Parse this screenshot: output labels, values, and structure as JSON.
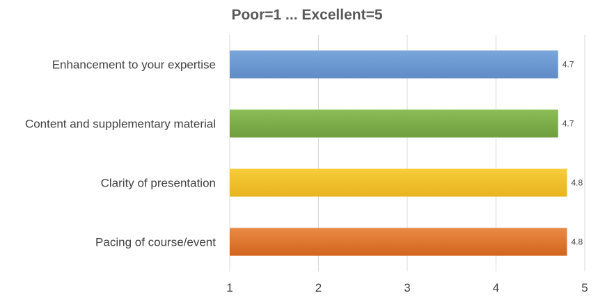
{
  "chart_data": {
    "type": "bar",
    "orientation": "horizontal",
    "title": "Poor=1 ... Excellent=5",
    "xlabel": "",
    "ylabel": "",
    "categories": [
      "Enhancement to your expertise",
      "Content and supplementary material",
      "Clarity of presentation",
      "Pacing of course/event"
    ],
    "values": [
      4.7,
      4.7,
      4.8,
      4.8
    ],
    "data_labels": [
      "4.7",
      "4.7",
      "4.8",
      "4.8"
    ],
    "xlim": [
      1,
      5
    ],
    "xticks": [
      "1",
      "2",
      "3",
      "4",
      "5"
    ],
    "grid": "vertical",
    "legend": "none",
    "colors": [
      "#6f9bd2",
      "#7fb04c",
      "#f2c32c",
      "#e0762e"
    ]
  }
}
